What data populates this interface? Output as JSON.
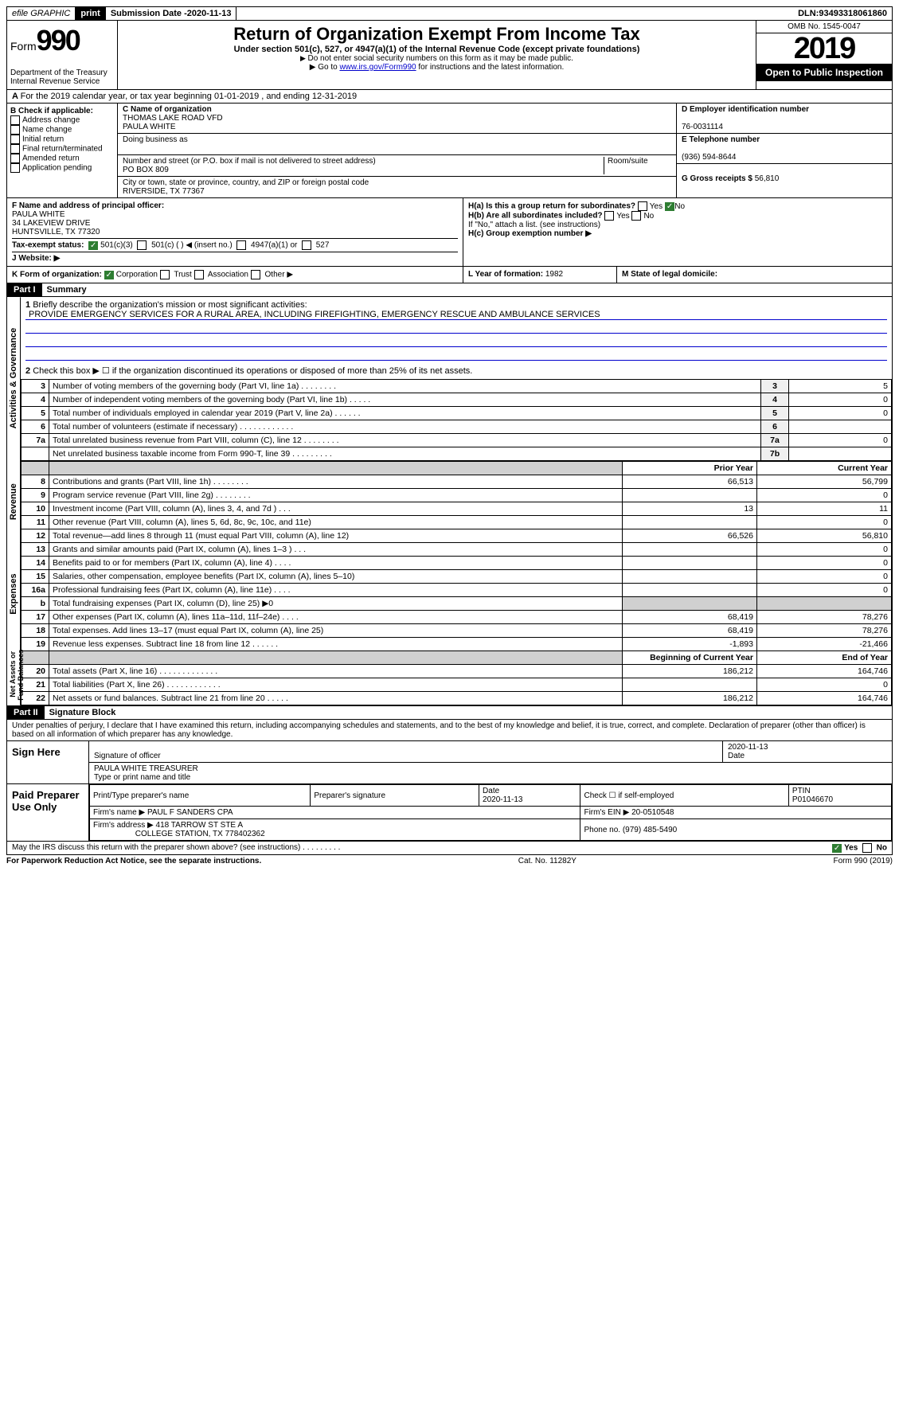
{
  "topbar": {
    "efile": "efile GRAPHIC",
    "print": "print",
    "subdate_label": "Submission Date - ",
    "subdate": "2020-11-13",
    "dln_label": "DLN: ",
    "dln": "93493318061860"
  },
  "header": {
    "form_word": "Form",
    "form_num": "990",
    "dept1": "Department of the Treasury",
    "dept2": "Internal Revenue Service",
    "title": "Return of Organization Exempt From Income Tax",
    "sub1": "Under section 501(c), 527, or 4947(a)(1) of the Internal Revenue Code (except private foundations)",
    "sub2": "Do not enter social security numbers on this form as it may be made public.",
    "sub3a": "Go to ",
    "sub3link": "www.irs.gov/Form990",
    "sub3b": " for instructions and the latest information.",
    "omb": "OMB No. 1545-0047",
    "year": "2019",
    "open": "Open to Public Inspection"
  },
  "A": {
    "text": "For the 2019 calendar year, or tax year beginning 01-01-2019   , and ending 12-31-2019"
  },
  "B": {
    "hdr": "B Check if applicable:",
    "items": [
      "Address change",
      "Name change",
      "Initial return",
      "Final return/terminated",
      "Amended return",
      "Application pending"
    ]
  },
  "C": {
    "namelbl": "C Name of organization",
    "name1": "THOMAS LAKE ROAD VFD",
    "name2": "PAULA WHITE",
    "dba": "Doing business as",
    "addrlbl": "Number and street (or P.O. box if mail is not delivered to street address)",
    "room": "Room/suite",
    "addr": "PO BOX 809",
    "citylbl": "City or town, state or province, country, and ZIP or foreign postal code",
    "city": "RIVERSIDE, TX  77367"
  },
  "D": {
    "einlbl": "D Employer identification number",
    "ein": "76-0031114"
  },
  "E": {
    "tellbl": "E Telephone number",
    "tel": "(936) 594-8644"
  },
  "G": {
    "lbl": "G Gross receipts $ ",
    "val": "56,810"
  },
  "F": {
    "lbl": "F  Name and address of principal officer:",
    "l1": "PAULA WHITE",
    "l2": "34 LAKEVIEW DRIVE",
    "l3": "HUNTSVILLE, TX  77320"
  },
  "H": {
    "a": "H(a)  Is this a group return for subordinates?",
    "b": "H(b)  Are all subordinates included?",
    "note": "If \"No,\" attach a list. (see instructions)",
    "c": "H(c)  Group exemption number ▶",
    "yes": "Yes",
    "no": "No"
  },
  "I": {
    "lbl": "Tax-exempt status:",
    "c1": "501(c)(3)",
    "c2": "501(c) (  ) ◀ (insert no.)",
    "c3": "4947(a)(1) or",
    "c4": "527"
  },
  "J": {
    "lbl": "J    Website: ▶"
  },
  "K": {
    "lbl": "K Form of organization:",
    "corp": "Corporation",
    "trust": "Trust",
    "assoc": "Association",
    "other": "Other ▶"
  },
  "L": {
    "lbl": "L Year of formation: ",
    "val": "1982"
  },
  "M": {
    "lbl": "M State of legal domicile:"
  },
  "part1": {
    "hdr": "Part I",
    "title": "Summary",
    "l1": "Briefly describe the organization's mission or most significant activities:",
    "mission": "PROVIDE EMERGENCY SERVICES FOR A RURAL AREA, INCLUDING FIREFIGHTING, EMERGENCY RESCUE AND AMBULANCE SERVICES",
    "l2": "Check this box ▶ ☐  if the organization discontinued its operations or disposed of more than 25% of its net assets.",
    "rows_single": [
      {
        "n": "3",
        "t": "Number of voting members of the governing body (Part VI, line 1a)   .    .    .    .    .    .    .    .",
        "c": "3",
        "v": "5"
      },
      {
        "n": "4",
        "t": "Number of independent voting members of the governing body (Part VI, line 1b)   .    .    .    .    .",
        "c": "4",
        "v": "0"
      },
      {
        "n": "5",
        "t": "Total number of individuals employed in calendar year 2019 (Part V, line 2a)   .    .    .    .    .    .",
        "c": "5",
        "v": "0"
      },
      {
        "n": "6",
        "t": "Total number of volunteers (estimate if necessary)   .    .    .    .    .    .    .    .    .    .    .    .",
        "c": "6",
        "v": ""
      },
      {
        "n": "7a",
        "t": "Total unrelated business revenue from Part VIII, column (C), line 12   .    .    .    .    .    .    .    .",
        "c": "7a",
        "v": "0"
      },
      {
        "n": "",
        "t": "Net unrelated business taxable income from Form 990-T, line 39   .    .    .    .    .    .    .    .    .",
        "c": "7b",
        "v": ""
      }
    ],
    "twohdr": {
      "a": "Prior Year",
      "b": "Current Year"
    },
    "rev": [
      {
        "n": "8",
        "t": "Contributions and grants (Part VIII, line 1h)   .    .    .    .    .    .    .    .",
        "p": "66,513",
        "c": "56,799"
      },
      {
        "n": "9",
        "t": "Program service revenue (Part VIII, line 2g)   .    .    .    .    .    .    .    .",
        "p": "",
        "c": "0"
      },
      {
        "n": "10",
        "t": "Investment income (Part VIII, column (A), lines 3, 4, and 7d )   .    .    .",
        "p": "13",
        "c": "11"
      },
      {
        "n": "11",
        "t": "Other revenue (Part VIII, column (A), lines 5, 6d, 8c, 9c, 10c, and 11e)",
        "p": "",
        "c": "0"
      },
      {
        "n": "12",
        "t": "Total revenue—add lines 8 through 11 (must equal Part VIII, column (A), line 12)",
        "p": "66,526",
        "c": "56,810"
      }
    ],
    "exp": [
      {
        "n": "13",
        "t": "Grants and similar amounts paid (Part IX, column (A), lines 1–3 )   .    .    .",
        "p": "",
        "c": "0"
      },
      {
        "n": "14",
        "t": "Benefits paid to or for members (Part IX, column (A), line 4)   .    .    .    .",
        "p": "",
        "c": "0"
      },
      {
        "n": "15",
        "t": "Salaries, other compensation, employee benefits (Part IX, column (A), lines 5–10)",
        "p": "",
        "c": "0"
      },
      {
        "n": "16a",
        "t": "Professional fundraising fees (Part IX, column (A), line 11e)   .    .    .    .",
        "p": "",
        "c": "0"
      },
      {
        "n": "b",
        "t": "Total fundraising expenses (Part IX, column (D), line 25) ▶0",
        "p": "GREY",
        "c": "GREY"
      },
      {
        "n": "17",
        "t": "Other expenses (Part IX, column (A), lines 11a–11d, 11f–24e)   .    .    .    .",
        "p": "68,419",
        "c": "78,276"
      },
      {
        "n": "18",
        "t": "Total expenses. Add lines 13–17 (must equal Part IX, column (A), line 25)",
        "p": "68,419",
        "c": "78,276"
      },
      {
        "n": "19",
        "t": "Revenue less expenses. Subtract line 18 from line 12   .    .    .    .    .    .",
        "p": "-1,893",
        "c": "-21,466"
      }
    ],
    "nethdr": {
      "a": "Beginning of Current Year",
      "b": "End of Year"
    },
    "net": [
      {
        "n": "20",
        "t": "Total assets (Part X, line 16)   .    .    .    .    .    .    .    .    .    .    .    .    .",
        "p": "186,212",
        "c": "164,746"
      },
      {
        "n": "21",
        "t": "Total liabilities (Part X, line 26)   .    .    .    .    .    .    .    .    .    .    .    .",
        "p": "",
        "c": "0"
      },
      {
        "n": "22",
        "t": "Net assets or fund balances. Subtract line 21 from line 20   .    .    .    .    .",
        "p": "186,212",
        "c": "164,746"
      }
    ],
    "side": {
      "gov": "Activities & Governance",
      "rev": "Revenue",
      "exp": "Expenses",
      "net": "Net Assets or Fund Balances"
    }
  },
  "part2": {
    "hdr": "Part II",
    "title": "Signature Block",
    "pen": "Under penalties of perjury, I declare that I have examined this return, including accompanying schedules and statements, and to the best of my knowledge and belief, it is true, correct, and complete. Declaration of preparer (other than officer) is based on all information of which preparer has any knowledge.",
    "sign": "Sign Here",
    "sigoff": "Signature of officer",
    "date": "Date",
    "sigdate": "2020-11-13",
    "typed": "PAULA WHITE  TREASURER",
    "typedlbl": "Type or print name and title",
    "paid": "Paid Preparer Use Only",
    "pp_name_lbl": "Print/Type preparer's name",
    "pp_sig_lbl": "Preparer's signature",
    "pp_date_lbl": "Date",
    "pp_date": "2020-11-13",
    "pp_check": "Check ☐ if self-employed",
    "ptin_lbl": "PTIN",
    "ptin": "P01046670",
    "firm_name_lbl": "Firm's name    ▶ ",
    "firm_name": "PAUL F SANDERS CPA",
    "firm_ein_lbl": "Firm's EIN ▶ ",
    "firm_ein": "20-0510548",
    "firm_addr_lbl": "Firm's address ▶ ",
    "firm_addr1": "418 TARROW ST STE A",
    "firm_addr2": "COLLEGE STATION, TX  778402362",
    "phone_lbl": "Phone no. ",
    "phone": "(979) 485-5490",
    "discuss": "May the IRS discuss this return with the preparer shown above? (see instructions)   .    .    .    .    .    .    .    .    .",
    "yes": "Yes",
    "no": "No"
  },
  "footer": {
    "l": "For Paperwork Reduction Act Notice, see the separate instructions.",
    "m": "Cat. No. 11282Y",
    "r": "Form 990 (2019)"
  }
}
